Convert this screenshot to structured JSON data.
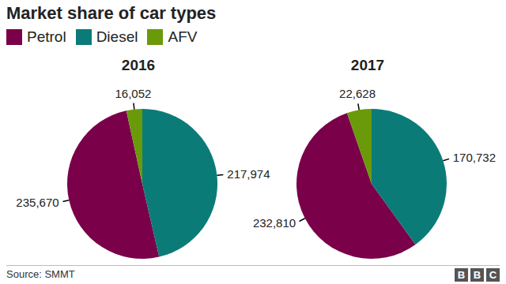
{
  "title": "Market share of car types",
  "source": "Source: SMMT",
  "logo": "BBC",
  "chart_data": [
    {
      "type": "pie",
      "title": "2016",
      "categories": [
        "Petrol",
        "Diesel",
        "AFV"
      ],
      "values": [
        235670,
        217974,
        16052
      ],
      "value_labels": [
        "235,670",
        "217,974",
        "16,052"
      ],
      "colors": [
        "#7a0049",
        "#0b7b78",
        "#6a9a0a"
      ],
      "data_labels": true,
      "legend": "top-left"
    },
    {
      "type": "pie",
      "title": "2017",
      "categories": [
        "Petrol",
        "Diesel",
        "AFV"
      ],
      "values": [
        232810,
        170732,
        22628
      ],
      "value_labels": [
        "232,810",
        "170,732",
        "22,628"
      ],
      "colors": [
        "#7a0049",
        "#0b7b78",
        "#6a9a0a"
      ],
      "data_labels": true,
      "legend": "top-left"
    }
  ]
}
